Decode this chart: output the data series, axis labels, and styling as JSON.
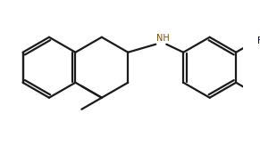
{
  "bg_color": "#ffffff",
  "bond_color": "#1a1a1a",
  "nh_color": "#7B4F00",
  "f_color": "#00008B",
  "lw": 1.6,
  "r": 0.68,
  "figsize": [
    2.91,
    1.64
  ],
  "dpi": 100
}
